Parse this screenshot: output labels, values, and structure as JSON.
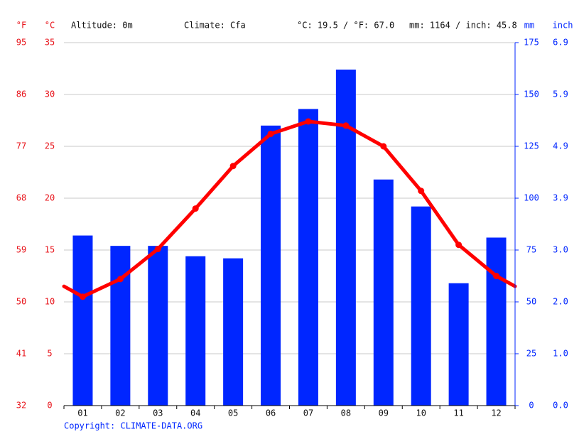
{
  "chart_data": {
    "type": "combo",
    "y3_label": "°F",
    "y_label": "°C",
    "y2_label": "mm",
    "y4_label": "inch",
    "annotations": [
      "Altitude: 0m",
      "Climate: Cfa",
      "°C: 19.5 / °F: 67.0",
      "mm: 1164 / inch: 45.8"
    ],
    "categories": [
      "01",
      "02",
      "03",
      "04",
      "05",
      "06",
      "07",
      "08",
      "09",
      "10",
      "11",
      "12"
    ],
    "series": [
      {
        "type": "bar",
        "axis": "y2",
        "color": "#0026ff",
        "values": [
          82,
          77,
          77,
          72,
          71,
          135,
          143,
          162,
          109,
          96,
          59,
          81
        ]
      },
      {
        "type": "line",
        "color": "#ff0000",
        "values": [
          10.5,
          12.2,
          15.1,
          19.0,
          23.1,
          26.2,
          27.4,
          27.0,
          25.0,
          20.7,
          15.5,
          12.5
        ]
      }
    ],
    "ylim": [
      0,
      35
    ],
    "yticks": [
      0,
      5,
      10,
      15,
      20,
      25,
      30,
      35
    ],
    "y2lim": [
      0,
      175
    ],
    "y2ticks": [
      0,
      25,
      50,
      75,
      100,
      125,
      150,
      175
    ],
    "y3lim": [
      32,
      95
    ],
    "y3ticks": [
      32,
      41,
      50,
      59,
      68,
      77,
      86,
      95
    ],
    "y4lim": [
      0,
      6.89
    ],
    "y4ticks": [
      {
        "value": 0,
        "label": "0.0"
      },
      {
        "value": 0.984,
        "label": "1.0"
      },
      {
        "value": 1.969,
        "label": "2.0"
      },
      {
        "value": 2.953,
        "label": "3.0"
      },
      {
        "value": 3.937,
        "label": "3.9"
      },
      {
        "value": 4.921,
        "label": "4.9"
      },
      {
        "value": 5.906,
        "label": "5.9"
      },
      {
        "value": 6.89,
        "label": "6.9"
      }
    ],
    "grid": true,
    "source": "Copyright: CLIMATE-DATA.ORG"
  }
}
